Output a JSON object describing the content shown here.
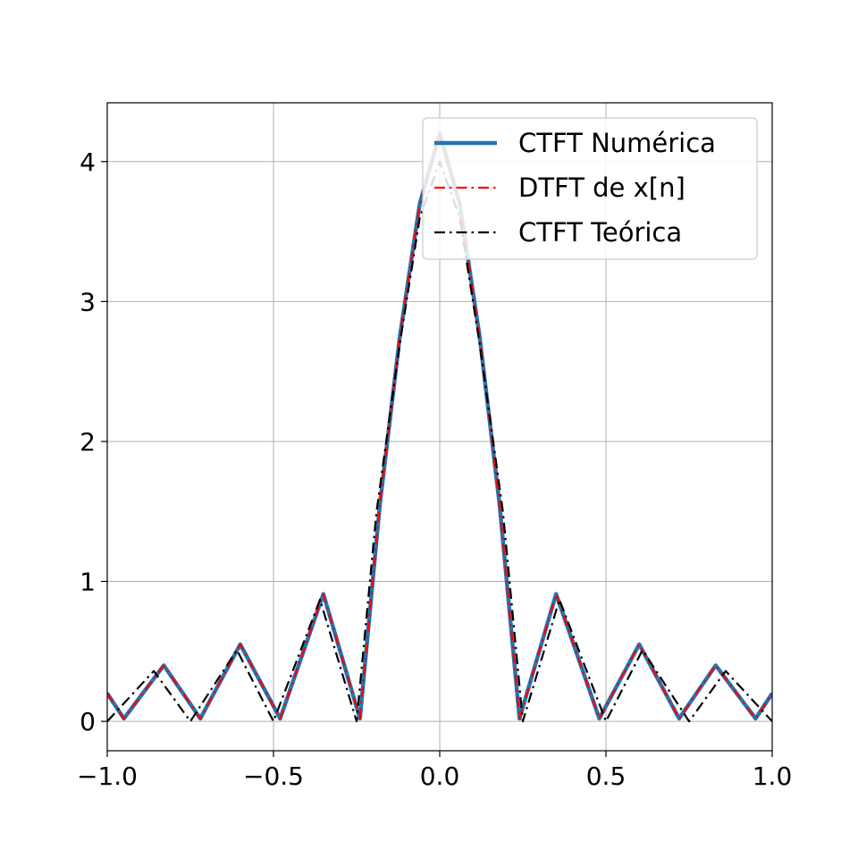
{
  "chart_data": {
    "type": "line",
    "title": "",
    "xlabel": "",
    "ylabel": "",
    "xlim": [
      -1.0,
      1.0
    ],
    "ylim": [
      -0.21,
      4.42
    ],
    "grid": true,
    "legend_position": "top-right",
    "x_ticks": [
      -1.0,
      -0.5,
      0.0,
      0.5,
      1.0
    ],
    "x_tick_labels": [
      "−1.0",
      "−0.5",
      "0.0",
      "0.5",
      "1.0"
    ],
    "y_ticks": [
      0,
      1,
      2,
      3,
      4
    ],
    "y_tick_labels": [
      "0",
      "1",
      "2",
      "3",
      "4"
    ],
    "series": [
      {
        "name": "CTFT Numérica",
        "style": "solid",
        "color": "#1f77b4",
        "x": [
          -1.0,
          -0.95,
          -0.83,
          -0.72,
          -0.6,
          -0.48,
          -0.35,
          -0.24,
          -0.18,
          -0.12,
          -0.06,
          0.0,
          0.06,
          0.12,
          0.18,
          0.24,
          0.35,
          0.48,
          0.6,
          0.72,
          0.83,
          0.95,
          1.0
        ],
        "y": [
          0.2,
          0.02,
          0.4,
          0.02,
          0.55,
          0.02,
          0.91,
          0.02,
          1.55,
          2.75,
          3.7,
          4.2,
          3.7,
          2.75,
          1.55,
          0.02,
          0.91,
          0.02,
          0.55,
          0.02,
          0.4,
          0.02,
          0.2
        ]
      },
      {
        "name": "DTFT de x[n]",
        "style": "dashdot",
        "color": "#ff0000",
        "x": [
          -1.0,
          -0.95,
          -0.83,
          -0.72,
          -0.6,
          -0.48,
          -0.35,
          -0.24,
          -0.18,
          -0.12,
          -0.06,
          0.0,
          0.06,
          0.12,
          0.18,
          0.24,
          0.35,
          0.48,
          0.6,
          0.72,
          0.83,
          0.95,
          1.0
        ],
        "y": [
          0.2,
          0.02,
          0.4,
          0.02,
          0.55,
          0.02,
          0.91,
          0.02,
          1.55,
          2.75,
          3.7,
          4.2,
          3.7,
          2.75,
          1.55,
          0.02,
          0.91,
          0.02,
          0.55,
          0.02,
          0.4,
          0.02,
          0.2
        ]
      },
      {
        "name": "CTFT Teórica",
        "style": "dashdot",
        "color": "#000000",
        "x": [
          -1.0,
          -0.86,
          -0.75,
          -0.61,
          -0.5,
          -0.36,
          -0.25,
          -0.19,
          -0.12,
          -0.06,
          0.0,
          0.06,
          0.12,
          0.19,
          0.25,
          0.36,
          0.5,
          0.61,
          0.75,
          0.86,
          1.0
        ],
        "y": [
          0.0,
          0.36,
          0.0,
          0.51,
          0.0,
          0.87,
          0.0,
          1.5,
          2.7,
          3.6,
          4.0,
          3.6,
          2.7,
          1.5,
          0.0,
          0.87,
          0.0,
          0.51,
          0.0,
          0.36,
          0.0
        ]
      }
    ]
  }
}
